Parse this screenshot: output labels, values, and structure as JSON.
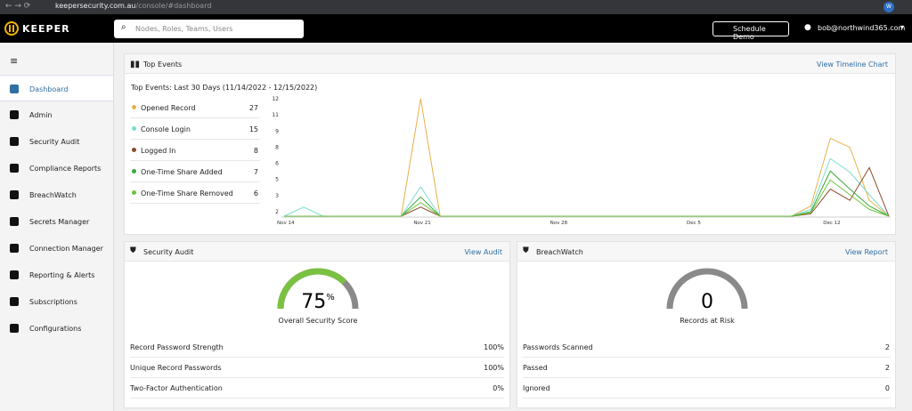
{
  "browser": {
    "url_host": "keepersecurity.com.au",
    "url_path": "/console/#dashboard",
    "profile": "W"
  },
  "header": {
    "brand": "KEEPER",
    "search_placeholder": "Nodes, Roles, Teams, Users",
    "schedule_demo": "Schedule Demo",
    "user": "bob@northwind365.com"
  },
  "sidebar": {
    "items": [
      "Dashboard",
      "Admin",
      "Security Audit",
      "Compliance Reports",
      "BreachWatch",
      "Secrets Manager",
      "Connection Manager",
      "Reporting & Alerts",
      "Subscriptions",
      "Configurations"
    ]
  },
  "top_events": {
    "title": "Top Events",
    "link": "View Timeline Chart",
    "subtitle": "Top Events: Last 30 Days (11/14/2022 - 12/15/2022)",
    "totals": [
      27,
      15,
      8,
      7,
      6
    ],
    "chart": {
      "type": "line",
      "categories": [
        "Nov 14",
        null,
        null,
        null,
        null,
        null,
        null,
        "Nov 21",
        null,
        null,
        null,
        null,
        null,
        null,
        "Nov 28",
        null,
        null,
        null,
        null,
        null,
        null,
        "Dec 5",
        null,
        null,
        null,
        null,
        null,
        null,
        "Dec 12",
        null,
        null,
        null
      ],
      "ylim": [
        1.6,
        12
      ],
      "yticks": [
        2,
        {
          "value": 3.43,
          "label": "3"
        },
        {
          "value": 4.86,
          "label": "5"
        },
        {
          "value": 6.29,
          "label": "6"
        },
        {
          "value": 7.71,
          "label": "8"
        },
        {
          "value": 9.14,
          "label": "9"
        },
        {
          "value": 10.57,
          "label": "11"
        },
        12
      ],
      "series": [
        {
          "name": "Opened Record",
          "color": "#e8b04a",
          "values": [
            1.6,
            1.6,
            1.6,
            1.6,
            1.6,
            1.6,
            1.6,
            12,
            1.6,
            1.6,
            1.6,
            1.6,
            1.6,
            1.6,
            1.6,
            1.6,
            1.6,
            1.6,
            1.6,
            1.6,
            1.6,
            1.6,
            1.6,
            1.6,
            1.6,
            1.6,
            1.6,
            2.5,
            8.5,
            7.7,
            3,
            1.6
          ]
        },
        {
          "name": "Console Login",
          "color": "#7ddcd0",
          "values": [
            1.6,
            2.4,
            1.6,
            1.6,
            1.6,
            1.6,
            1.6,
            4.2,
            1.6,
            1.6,
            1.6,
            1.6,
            1.6,
            1.6,
            1.6,
            1.6,
            1.6,
            1.6,
            1.6,
            1.6,
            1.6,
            1.6,
            1.6,
            1.6,
            1.6,
            1.6,
            1.6,
            2.2,
            6.7,
            5.5,
            3.5,
            1.6
          ]
        },
        {
          "name": "Logged In",
          "color": "#8b4a2b",
          "values": [
            1.6,
            1.6,
            1.6,
            1.6,
            1.6,
            1.6,
            1.6,
            2.4,
            1.6,
            1.6,
            1.6,
            1.6,
            1.6,
            1.6,
            1.6,
            1.6,
            1.6,
            1.6,
            1.6,
            1.6,
            1.6,
            1.6,
            1.6,
            1.6,
            1.6,
            1.6,
            1.6,
            1.8,
            4,
            3,
            5.9,
            1.6
          ]
        },
        {
          "name": "One-Time Share Added",
          "color": "#3aa83a",
          "values": [
            1.6,
            1.6,
            1.6,
            1.6,
            1.6,
            1.6,
            1.6,
            3.3,
            1.6,
            1.6,
            1.6,
            1.6,
            1.6,
            1.6,
            1.6,
            1.6,
            1.6,
            1.6,
            1.6,
            1.6,
            1.6,
            1.6,
            1.6,
            1.6,
            1.6,
            1.6,
            1.6,
            2,
            5.6,
            4,
            2.5,
            1.6
          ]
        },
        {
          "name": "One-Time Share Removed",
          "color": "#6cc63c",
          "values": [
            1.6,
            1.6,
            1.6,
            1.6,
            1.6,
            1.6,
            1.6,
            2.8,
            1.6,
            1.6,
            1.6,
            1.6,
            1.6,
            1.6,
            1.6,
            1.6,
            1.6,
            1.6,
            1.6,
            1.6,
            1.6,
            1.6,
            1.6,
            1.6,
            1.6,
            1.6,
            1.6,
            1.9,
            4.8,
            3.5,
            2.2,
            1.6
          ]
        }
      ]
    }
  },
  "security_audit": {
    "title": "Security Audit",
    "link": "View Audit",
    "score": 75,
    "score_unit": "%",
    "score_label": "Overall Security Score",
    "rows": [
      [
        "Record Password Strength",
        "100%"
      ],
      [
        "Unique Record Passwords",
        "100%"
      ],
      [
        "Two-Factor Authentication",
        "0%"
      ]
    ]
  },
  "breachwatch": {
    "title": "BreachWatch",
    "link": "View Report",
    "score": 0,
    "score_label": "Records at Risk",
    "rows": [
      [
        "Passwords Scanned",
        "2"
      ],
      [
        "Passed",
        "2"
      ],
      [
        "Ignored",
        "0"
      ]
    ]
  }
}
